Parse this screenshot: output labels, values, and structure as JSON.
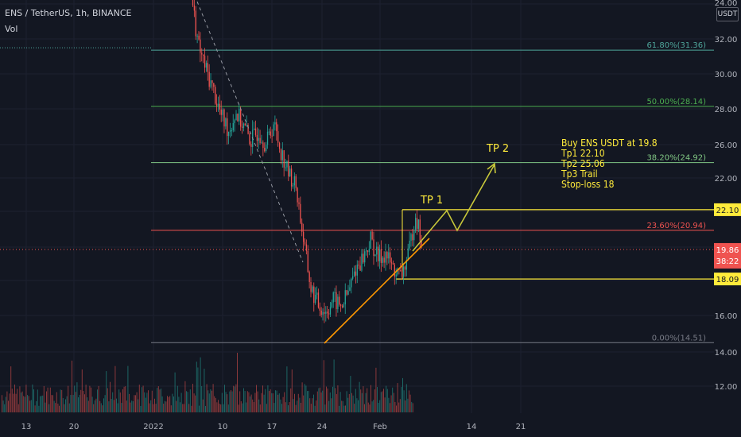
{
  "header": {
    "symbol": "ENS / TetherUS, 1h, BINANCE",
    "volume_label": "Vol",
    "currency_button": "USDT"
  },
  "colors": {
    "background": "#131722",
    "up": "#26a69a",
    "down": "#ef5350",
    "fib_618": "#4ea59a",
    "fib_500": "#4caf50",
    "fib_382": "#81c784",
    "fib_236": "#ef5350",
    "fib_0": "#787b86",
    "annotation": "#ffeb3b",
    "trendline": "#ff9800",
    "arrow": "#c8c83a"
  },
  "annotation_note": [
    "Buy ENS USDT at 19.8",
    "Tp1 22.10",
    "Tp2 25.06",
    "Tp3 Trail",
    "Stop-loss 18"
  ],
  "tp_labels": {
    "tp1": "TP 1",
    "tp2": "TP 2"
  },
  "chart_data": {
    "type": "candlestick",
    "title": "ENS / TetherUS, 1h, BINANCE",
    "y_axis": {
      "range": [
        10.5,
        24.3
      ],
      "ticks": [
        "24.00",
        "22.00",
        "20.00",
        "18.00",
        "16.00",
        "14.00",
        "12.00"
      ],
      "ticks_upper": [
        "32.00",
        "30.00",
        "28.00",
        "26.00"
      ],
      "note": "upper section compressed"
    },
    "x_axis": {
      "ticks": [
        "13",
        "20",
        "2022",
        "10",
        "17",
        "24",
        "Feb",
        "14",
        "21"
      ]
    },
    "price_levels": [
      {
        "label": "61.80%(31.36)",
        "value": 31.36
      },
      {
        "label": "50.00%(28.14)",
        "value": 28.14
      },
      {
        "label": "38.20%(24.92)",
        "value": 24.92
      },
      {
        "label": "23.60%(20.94)",
        "value": 20.94
      },
      {
        "label": "0.00%(14.51)",
        "value": 14.51
      }
    ],
    "price_tags": [
      {
        "label": "22.10",
        "value": 22.1,
        "kind": "tp1"
      },
      {
        "label": "19.86",
        "value": 19.86,
        "kind": "current",
        "countdown": "38:22"
      },
      {
        "label": "18.09",
        "value": 18.09,
        "kind": "stop"
      }
    ],
    "price_path": [
      {
        "date": "2022-01-06",
        "price": 34.5
      },
      {
        "date": "2022-01-07",
        "price": 31.5
      },
      {
        "date": "2022-01-08",
        "price": 30.2
      },
      {
        "date": "2022-01-09",
        "price": 29.0
      },
      {
        "date": "2022-01-10",
        "price": 27.6
      },
      {
        "date": "2022-01-11",
        "price": 26.8
      },
      {
        "date": "2022-01-12",
        "price": 27.8
      },
      {
        "date": "2022-01-13",
        "price": 27.0
      },
      {
        "date": "2022-01-14",
        "price": 26.2
      },
      {
        "date": "2022-01-15",
        "price": 26.8
      },
      {
        "date": "2022-01-16",
        "price": 26.0
      },
      {
        "date": "2022-01-17",
        "price": 27.2
      },
      {
        "date": "2022-01-18",
        "price": 25.6
      },
      {
        "date": "2022-01-19",
        "price": 24.3
      },
      {
        "date": "2022-01-20",
        "price": 23.5
      },
      {
        "date": "2022-01-21",
        "price": 20.4
      },
      {
        "date": "2022-01-22",
        "price": 17.5
      },
      {
        "date": "2022-01-23",
        "price": 16.6
      },
      {
        "date": "2022-01-24",
        "price": 16.2
      },
      {
        "date": "2022-01-25",
        "price": 16.9
      },
      {
        "date": "2022-01-26",
        "price": 16.5
      },
      {
        "date": "2022-01-27",
        "price": 17.3
      },
      {
        "date": "2022-01-28",
        "price": 18.7
      },
      {
        "date": "2022-01-29",
        "price": 19.4
      },
      {
        "date": "2022-01-30",
        "price": 20.4
      },
      {
        "date": "2022-01-31",
        "price": 19.3
      },
      {
        "date": "2022-02-01",
        "price": 19.6
      },
      {
        "date": "2022-02-02",
        "price": 18.7
      },
      {
        "date": "2022-02-03",
        "price": 18.2
      },
      {
        "date": "2022-02-04",
        "price": 19.4
      },
      {
        "date": "2022-02-05",
        "price": 21.9
      },
      {
        "date": "2022-02-06",
        "price": 19.86
      }
    ]
  }
}
